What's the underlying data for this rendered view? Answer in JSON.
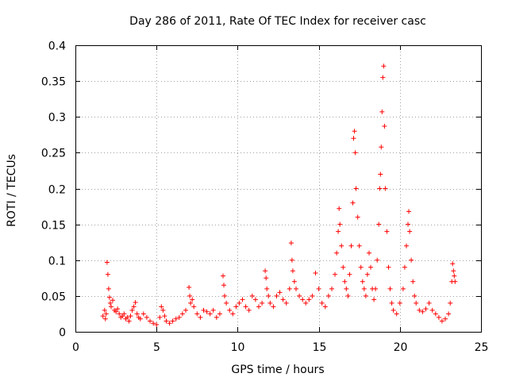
{
  "chart_data": {
    "type": "scatter",
    "title": "Day 286 of 2011, Rate Of TEC Index for receiver casc",
    "xlabel": "GPS time / hours",
    "ylabel": "ROTI / TECUs",
    "xlim": [
      0,
      25
    ],
    "ylim": [
      0,
      0.4
    ],
    "x_ticks": [
      0,
      5,
      10,
      15,
      20,
      25
    ],
    "x_tick_labels": [
      "0",
      "5",
      "10",
      "15",
      "20",
      "25"
    ],
    "y_ticks": [
      0,
      0.05,
      0.1,
      0.15,
      0.2,
      0.25,
      0.3,
      0.35,
      0.4
    ],
    "y_tick_labels": [
      "0",
      "0.05",
      "0.1",
      "0.15",
      "0.2",
      "0.25",
      "0.3",
      "0.35",
      "0.4"
    ],
    "grid": true,
    "marker": "+",
    "color": "#ff0000",
    "series": [
      {
        "name": "ROTI",
        "points": [
          [
            1.7,
            0.022
          ],
          [
            1.8,
            0.03
          ],
          [
            1.85,
            0.018
          ],
          [
            1.9,
            0.025
          ],
          [
            1.95,
            0.097
          ],
          [
            2.0,
            0.08
          ],
          [
            2.05,
            0.06
          ],
          [
            2.1,
            0.048
          ],
          [
            2.15,
            0.04
          ],
          [
            2.2,
            0.035
          ],
          [
            2.3,
            0.044
          ],
          [
            2.4,
            0.03
          ],
          [
            2.5,
            0.028
          ],
          [
            2.6,
            0.032
          ],
          [
            2.7,
            0.025
          ],
          [
            2.8,
            0.02
          ],
          [
            2.9,
            0.022
          ],
          [
            3.0,
            0.025
          ],
          [
            3.1,
            0.018
          ],
          [
            3.2,
            0.02
          ],
          [
            3.3,
            0.015
          ],
          [
            3.4,
            0.022
          ],
          [
            3.5,
            0.03
          ],
          [
            3.6,
            0.035
          ],
          [
            3.7,
            0.041
          ],
          [
            3.8,
            0.025
          ],
          [
            3.9,
            0.02
          ],
          [
            4.0,
            0.018
          ],
          [
            4.2,
            0.025
          ],
          [
            4.4,
            0.02
          ],
          [
            4.6,
            0.015
          ],
          [
            4.8,
            0.012
          ],
          [
            5.0,
            0.01
          ],
          [
            5.2,
            0.02
          ],
          [
            5.3,
            0.035
          ],
          [
            5.4,
            0.03
          ],
          [
            5.5,
            0.022
          ],
          [
            5.6,
            0.015
          ],
          [
            5.8,
            0.012
          ],
          [
            6.0,
            0.015
          ],
          [
            6.2,
            0.018
          ],
          [
            6.4,
            0.02
          ],
          [
            6.6,
            0.025
          ],
          [
            6.8,
            0.03
          ],
          [
            7.0,
            0.062
          ],
          [
            7.05,
            0.05
          ],
          [
            7.1,
            0.04
          ],
          [
            7.2,
            0.045
          ],
          [
            7.3,
            0.035
          ],
          [
            7.5,
            0.025
          ],
          [
            7.7,
            0.02
          ],
          [
            7.9,
            0.03
          ],
          [
            8.1,
            0.028
          ],
          [
            8.3,
            0.025
          ],
          [
            8.5,
            0.03
          ],
          [
            8.7,
            0.02
          ],
          [
            8.9,
            0.025
          ],
          [
            9.1,
            0.078
          ],
          [
            9.15,
            0.065
          ],
          [
            9.2,
            0.05
          ],
          [
            9.3,
            0.04
          ],
          [
            9.5,
            0.03
          ],
          [
            9.7,
            0.025
          ],
          [
            9.9,
            0.035
          ],
          [
            10.1,
            0.04
          ],
          [
            10.3,
            0.045
          ],
          [
            10.5,
            0.035
          ],
          [
            10.7,
            0.03
          ],
          [
            10.9,
            0.05
          ],
          [
            11.1,
            0.045
          ],
          [
            11.3,
            0.035
          ],
          [
            11.5,
            0.04
          ],
          [
            11.7,
            0.085
          ],
          [
            11.75,
            0.075
          ],
          [
            11.8,
            0.06
          ],
          [
            11.9,
            0.05
          ],
          [
            12.0,
            0.04
          ],
          [
            12.2,
            0.035
          ],
          [
            12.4,
            0.05
          ],
          [
            12.6,
            0.055
          ],
          [
            12.8,
            0.045
          ],
          [
            13.0,
            0.04
          ],
          [
            13.2,
            0.06
          ],
          [
            13.3,
            0.124
          ],
          [
            13.35,
            0.1
          ],
          [
            13.4,
            0.085
          ],
          [
            13.5,
            0.07
          ],
          [
            13.6,
            0.06
          ],
          [
            13.8,
            0.05
          ],
          [
            14.0,
            0.045
          ],
          [
            14.2,
            0.04
          ],
          [
            14.4,
            0.045
          ],
          [
            14.6,
            0.05
          ],
          [
            14.8,
            0.082
          ],
          [
            15.0,
            0.06
          ],
          [
            15.2,
            0.04
          ],
          [
            15.4,
            0.035
          ],
          [
            15.6,
            0.05
          ],
          [
            15.8,
            0.06
          ],
          [
            16.0,
            0.08
          ],
          [
            16.1,
            0.11
          ],
          [
            16.2,
            0.14
          ],
          [
            16.25,
            0.172
          ],
          [
            16.3,
            0.15
          ],
          [
            16.4,
            0.12
          ],
          [
            16.5,
            0.09
          ],
          [
            16.6,
            0.07
          ],
          [
            16.7,
            0.06
          ],
          [
            16.8,
            0.05
          ],
          [
            16.9,
            0.08
          ],
          [
            17.0,
            0.12
          ],
          [
            17.1,
            0.18
          ],
          [
            17.15,
            0.27
          ],
          [
            17.2,
            0.28
          ],
          [
            17.25,
            0.25
          ],
          [
            17.3,
            0.2
          ],
          [
            17.4,
            0.16
          ],
          [
            17.5,
            0.12
          ],
          [
            17.6,
            0.09
          ],
          [
            17.7,
            0.07
          ],
          [
            17.8,
            0.06
          ],
          [
            17.9,
            0.05
          ],
          [
            18.0,
            0.08
          ],
          [
            18.1,
            0.11
          ],
          [
            18.2,
            0.09
          ],
          [
            18.3,
            0.06
          ],
          [
            18.4,
            0.045
          ],
          [
            18.5,
            0.06
          ],
          [
            18.6,
            0.1
          ],
          [
            18.7,
            0.15
          ],
          [
            18.75,
            0.2
          ],
          [
            18.8,
            0.22
          ],
          [
            18.85,
            0.258
          ],
          [
            18.9,
            0.307
          ],
          [
            18.95,
            0.355
          ],
          [
            19.0,
            0.371
          ],
          [
            19.05,
            0.287
          ],
          [
            19.1,
            0.2
          ],
          [
            19.2,
            0.14
          ],
          [
            19.3,
            0.09
          ],
          [
            19.4,
            0.06
          ],
          [
            19.5,
            0.04
          ],
          [
            19.6,
            0.03
          ],
          [
            19.8,
            0.025
          ],
          [
            20.0,
            0.04
          ],
          [
            20.2,
            0.06
          ],
          [
            20.3,
            0.09
          ],
          [
            20.4,
            0.12
          ],
          [
            20.5,
            0.15
          ],
          [
            20.55,
            0.168
          ],
          [
            20.6,
            0.14
          ],
          [
            20.7,
            0.1
          ],
          [
            20.8,
            0.07
          ],
          [
            20.9,
            0.05
          ],
          [
            21.0,
            0.04
          ],
          [
            21.2,
            0.03
          ],
          [
            21.4,
            0.028
          ],
          [
            21.6,
            0.032
          ],
          [
            21.8,
            0.04
          ],
          [
            22.0,
            0.03
          ],
          [
            22.2,
            0.025
          ],
          [
            22.4,
            0.02
          ],
          [
            22.6,
            0.015
          ],
          [
            22.8,
            0.018
          ],
          [
            23.0,
            0.025
          ],
          [
            23.1,
            0.04
          ],
          [
            23.2,
            0.07
          ],
          [
            23.25,
            0.095
          ],
          [
            23.3,
            0.085
          ],
          [
            23.35,
            0.078
          ],
          [
            23.4,
            0.07
          ]
        ]
      }
    ]
  }
}
